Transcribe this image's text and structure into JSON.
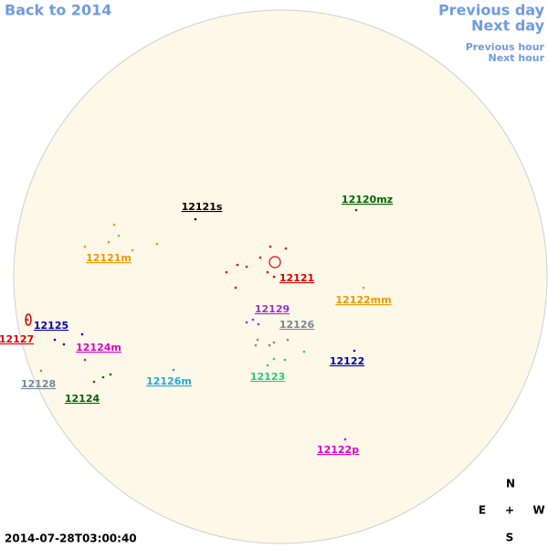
{
  "navigation": {
    "back": "Back to 2014",
    "previous_day": "Previous day",
    "next_day": "Next day",
    "previous_hour": "Previous hour",
    "next_hour": "Next hour"
  },
  "regions": [
    {
      "label": "12121s",
      "color": "#000000"
    },
    {
      "label": "12120mz",
      "color": "#006600"
    },
    {
      "label": "12121m",
      "color": "#ee9900"
    },
    {
      "label": "12121",
      "color": "#dd0000"
    },
    {
      "label": "12122mm",
      "color": "#ee9900"
    },
    {
      "label": "12129",
      "color": "#9933cc"
    },
    {
      "label": "12126",
      "color": "#778899"
    },
    {
      "label": "12125",
      "color": "#0000aa"
    },
    {
      "label": "12127",
      "color": "#dd0000"
    },
    {
      "label": "12124m",
      "color": "#dd00cc"
    },
    {
      "label": "12122",
      "color": "#0000aa"
    },
    {
      "label": "12123",
      "color": "#22cc88"
    },
    {
      "label": "12126m",
      "color": "#22aadd"
    },
    {
      "label": "12128",
      "color": "#778899"
    },
    {
      "label": "12124",
      "color": "#006600"
    },
    {
      "label": "12122p",
      "color": "#dd00cc"
    }
  ],
  "compass": {
    "north": "N",
    "east": "E",
    "center": "+",
    "west": "W",
    "south": "S"
  },
  "timestamp": "2014-07-28T03:00:40"
}
